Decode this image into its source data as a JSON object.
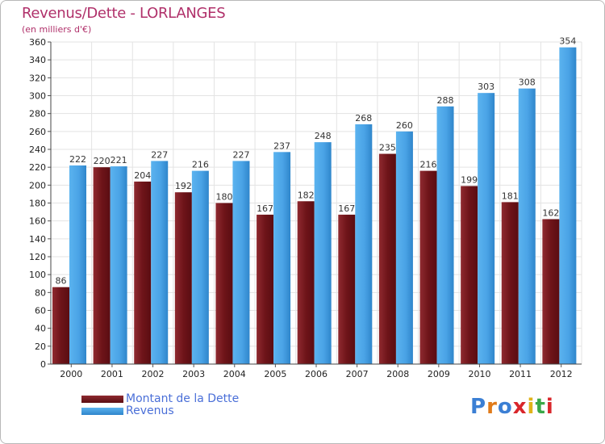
{
  "title": "Revenus/Dette - LORLANGES",
  "subtitle": "(en milliers d'€)",
  "logo": {
    "text": "Proxiti",
    "colors": [
      "#3b7fd4",
      "#e07b1a",
      "#3b7fd4",
      "#d9262b",
      "#e0b31a",
      "#3aa848",
      "#d9262b"
    ]
  },
  "chart_data": {
    "type": "bar",
    "categories": [
      "2000",
      "2001",
      "2002",
      "2003",
      "2004",
      "2005",
      "2006",
      "2007",
      "2008",
      "2009",
      "2010",
      "2011",
      "2012"
    ],
    "series": [
      {
        "name": "Montant de la Dette",
        "color": "#7a1c22",
        "values": [
          86,
          220,
          204,
          192,
          180,
          167,
          182,
          167,
          235,
          216,
          199,
          181,
          162
        ]
      },
      {
        "name": "Revenus",
        "color": "#4aa3e6",
        "values": [
          222,
          221,
          227,
          216,
          227,
          237,
          248,
          268,
          260,
          288,
          303,
          308,
          354
        ]
      }
    ],
    "ylim": [
      0,
      360
    ],
    "ytick_step": 20,
    "grid": true,
    "legend": "bottom-left"
  }
}
